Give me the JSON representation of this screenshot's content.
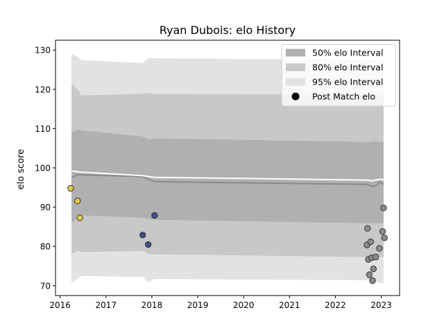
{
  "chart_data": {
    "type": "scatter",
    "title": "Ryan Dubois: elo History",
    "xlabel": "",
    "ylabel": "elo score",
    "xlim": [
      2015.9,
      2023.4
    ],
    "ylim": [
      67.5,
      132.5
    ],
    "xticks": [
      2016,
      2017,
      2018,
      2019,
      2020,
      2021,
      2022,
      2023
    ],
    "yticks": [
      70,
      80,
      90,
      100,
      110,
      120,
      130
    ],
    "grid": false,
    "legend_position": "top-right",
    "legend": [
      {
        "label": "50% elo Interval",
        "kind": "band",
        "color": "#b0b0b0"
      },
      {
        "label": "80% elo Interval",
        "kind": "band",
        "color": "#c8c8c8"
      },
      {
        "label": "95% elo Interval",
        "kind": "band",
        "color": "#e2e2e2"
      },
      {
        "label": "Post Match elo",
        "kind": "point",
        "color": "#000000"
      }
    ],
    "bands": {
      "x": [
        2016.25,
        2016.4,
        2016.45,
        2016.5,
        2017.8,
        2017.93,
        2018.05,
        2022.7,
        2022.78,
        2022.88,
        2022.97,
        2023.05
      ],
      "mean": [
        97.5,
        98.3,
        98.2,
        98.2,
        97.8,
        97.1,
        96.5,
        95.8,
        95.3,
        95.5,
        96.4,
        95.8
      ],
      "p50_hi": [
        109.0,
        109.8,
        109.6,
        109.5,
        108.0,
        107.2,
        107.5,
        106.6,
        106.6,
        106.8,
        106.6,
        106.7
      ],
      "p50_lo": [
        86.0,
        87.5,
        87.9,
        87.9,
        87.3,
        87.0,
        86.8,
        85.9,
        85.9,
        85.9,
        85.9,
        85.9
      ],
      "p80_hi": [
        121.5,
        119.8,
        118.5,
        118.4,
        118.9,
        119.0,
        118.8,
        118.7,
        118.7,
        118.7,
        118.7,
        118.7
      ],
      "p80_lo": [
        78.0,
        79.0,
        78.5,
        78.6,
        78.8,
        78.0,
        78.0,
        77.3,
        77.3,
        77.3,
        77.3,
        77.3
      ],
      "p95_hi": [
        129.0,
        128.2,
        127.5,
        127.4,
        126.7,
        127.9,
        127.9,
        127.5,
        127.5,
        127.5,
        127.5,
        127.5
      ],
      "p95_lo": [
        70.7,
        72.0,
        72.3,
        72.5,
        72.2,
        70.9,
        71.7,
        71.4,
        71.3,
        71.2,
        70.7,
        70.6
      ],
      "white_line": [
        99.2,
        99.0,
        98.9,
        98.9,
        98.0,
        97.8,
        97.6,
        96.9,
        96.7,
        96.9,
        97.1,
        97.0
      ]
    },
    "points": [
      {
        "x": 2016.23,
        "y": 94.8,
        "color": "#e8c94a"
      },
      {
        "x": 2016.38,
        "y": 91.6,
        "color": "#e8c94a"
      },
      {
        "x": 2016.43,
        "y": 87.3,
        "color": "#e8c94a"
      },
      {
        "x": 2017.8,
        "y": 82.9,
        "color": "#3a4f8a"
      },
      {
        "x": 2017.92,
        "y": 80.5,
        "color": "#3a4f8a"
      },
      {
        "x": 2018.06,
        "y": 87.9,
        "color": "#3a4f8a"
      },
      {
        "x": 2022.69,
        "y": 80.4,
        "color": "#8c8c8c"
      },
      {
        "x": 2022.7,
        "y": 84.6,
        "color": "#8c8c8c"
      },
      {
        "x": 2022.72,
        "y": 76.7,
        "color": "#8c8c8c"
      },
      {
        "x": 2022.74,
        "y": 72.8,
        "color": "#8c8c8c"
      },
      {
        "x": 2022.77,
        "y": 81.2,
        "color": "#8c8c8c"
      },
      {
        "x": 2022.79,
        "y": 77.1,
        "color": "#8c8c8c"
      },
      {
        "x": 2022.81,
        "y": 71.3,
        "color": "#8c8c8c"
      },
      {
        "x": 2022.83,
        "y": 74.3,
        "color": "#8c8c8c"
      },
      {
        "x": 2022.88,
        "y": 77.3,
        "color": "#8c8c8c"
      },
      {
        "x": 2022.96,
        "y": 79.5,
        "color": "#8c8c8c"
      },
      {
        "x": 2023.03,
        "y": 83.8,
        "color": "#8c8c8c"
      },
      {
        "x": 2023.05,
        "y": 89.8,
        "color": "#8c8c8c"
      },
      {
        "x": 2023.07,
        "y": 82.2,
        "color": "#8c8c8c"
      }
    ]
  }
}
